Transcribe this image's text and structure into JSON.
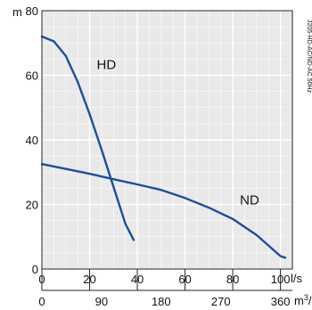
{
  "chart_data": {
    "type": "line",
    "y_unit": "m",
    "x_unit": "l/s",
    "x2_unit": "m3/h",
    "side_note": "J205-HD-AC/ND-AC 50Hz",
    "xlim": [
      0,
      105
    ],
    "ylim": [
      0,
      80
    ],
    "x_ticks": [
      0,
      20,
      40,
      60,
      80,
      100
    ],
    "y_ticks": [
      0,
      20,
      40,
      60,
      80
    ],
    "x2_ticks": [
      {
        "at": 0,
        "label": "0"
      },
      {
        "at": 25,
        "label": "90"
      },
      {
        "at": 50,
        "label": "180"
      },
      {
        "at": 75,
        "label": "270"
      },
      {
        "at": 100,
        "label": "360"
      }
    ],
    "x_minor_step": 5,
    "y_minor_step": 5,
    "grid": true,
    "series": [
      {
        "name": "HD",
        "label_at": {
          "x": 23,
          "y": 62
        },
        "color": "#1a4f9c",
        "points": [
          [
            0,
            72
          ],
          [
            5,
            70.5
          ],
          [
            10,
            66
          ],
          [
            15,
            58
          ],
          [
            20,
            48
          ],
          [
            25,
            37
          ],
          [
            30,
            25.5
          ],
          [
            35,
            14
          ],
          [
            38.5,
            9
          ]
        ]
      },
      {
        "name": "ND",
        "label_at": {
          "x": 83,
          "y": 20
        },
        "color": "#1a4f9c",
        "points": [
          [
            0,
            32.5
          ],
          [
            10,
            31
          ],
          [
            20,
            29.5
          ],
          [
            30,
            27.8
          ],
          [
            40,
            26.2
          ],
          [
            50,
            24.5
          ],
          [
            60,
            22
          ],
          [
            70,
            19
          ],
          [
            80,
            15.5
          ],
          [
            90,
            10.5
          ],
          [
            100,
            4
          ],
          [
            102,
            3.5
          ]
        ]
      }
    ]
  }
}
